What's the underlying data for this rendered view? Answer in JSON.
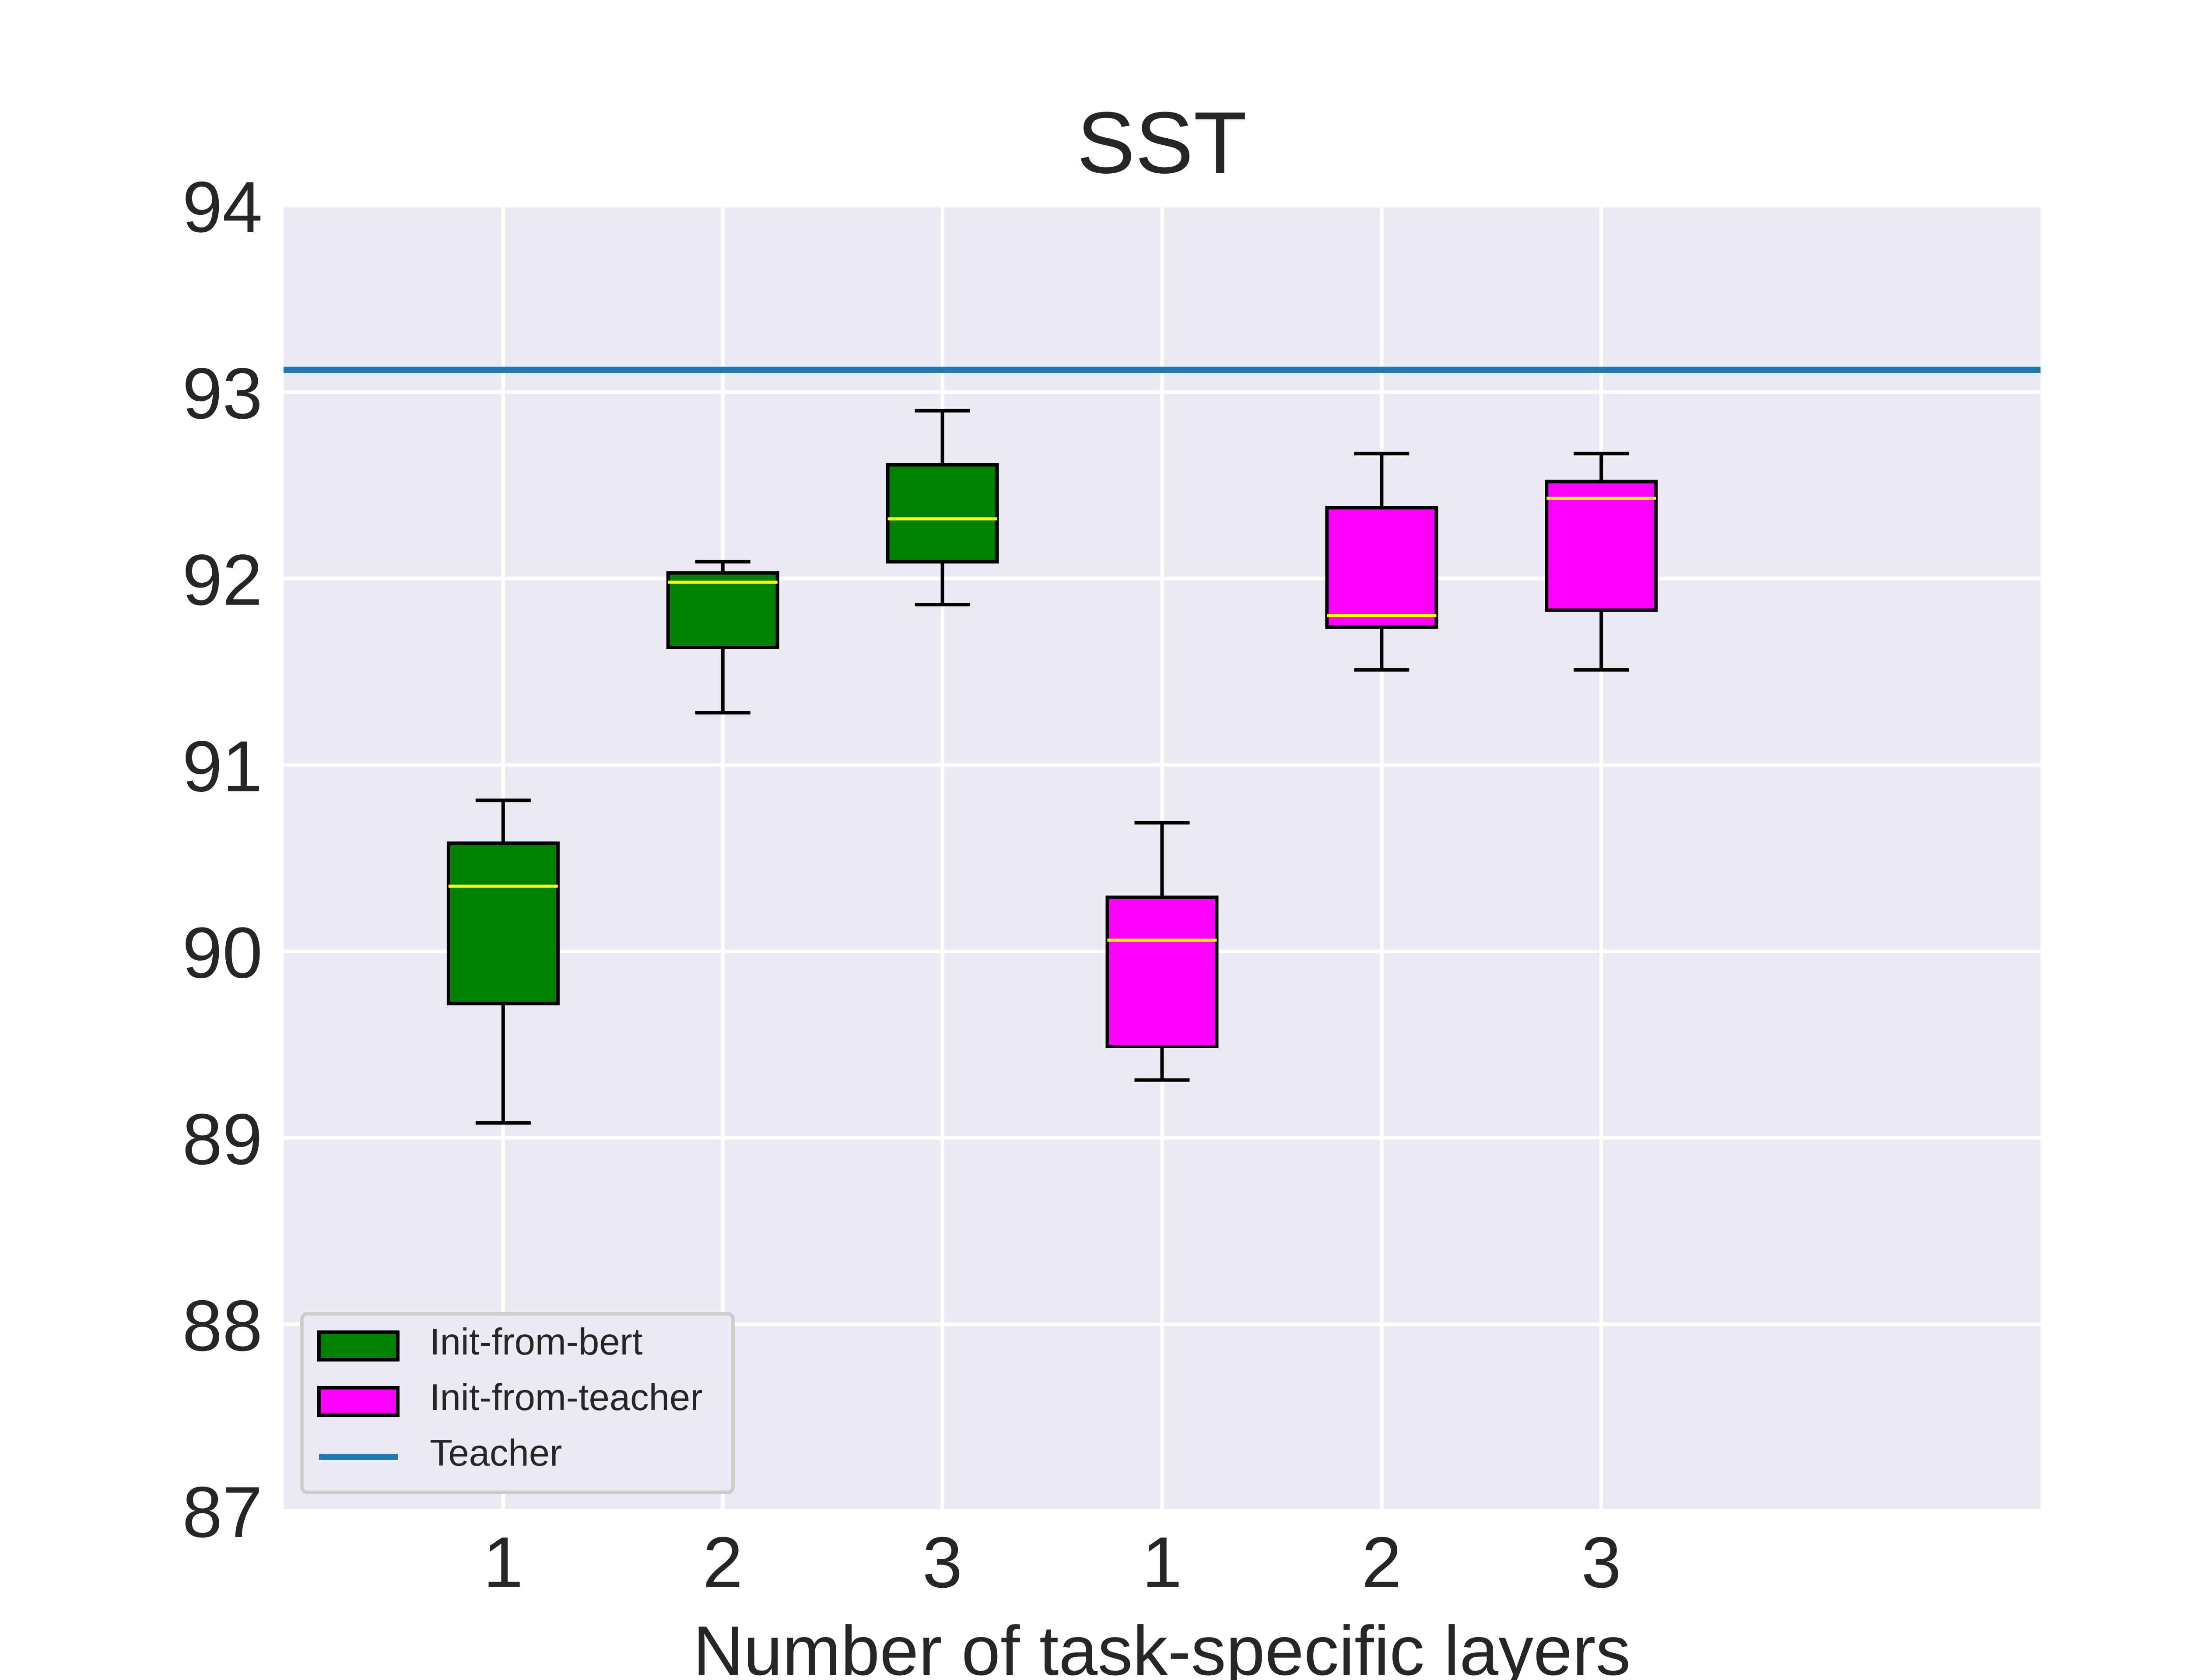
{
  "chart_data": {
    "type": "box",
    "title": "SST",
    "xlabel": "Number of task-specific layers",
    "ylabel": "",
    "ylim": [
      87,
      94
    ],
    "yticks": [
      87,
      88,
      89,
      90,
      91,
      92,
      93,
      94
    ],
    "grid": true,
    "legend_position": "lower-left",
    "categories": [
      "1",
      "2",
      "3",
      "1",
      "2",
      "3"
    ],
    "series": [
      {
        "name": "Init-from-bert",
        "color": "#008000",
        "median_color": "#ffff00",
        "boxes": [
          {
            "label": "1",
            "whisker_low": 89.08,
            "q1": 89.72,
            "median": 90.35,
            "q3": 90.58,
            "whisker_high": 90.81
          },
          {
            "label": "2",
            "whisker_low": 91.28,
            "q1": 91.63,
            "median": 91.98,
            "q3": 92.03,
            "whisker_high": 92.09
          },
          {
            "label": "3",
            "whisker_low": 91.86,
            "q1": 92.09,
            "median": 92.32,
            "q3": 92.61,
            "whisker_high": 92.9
          }
        ]
      },
      {
        "name": "Init-from-teacher",
        "color": "#ff00ff",
        "median_color": "#ffff00",
        "boxes": [
          {
            "label": "1",
            "whisker_low": 89.31,
            "q1": 89.49,
            "median": 90.06,
            "q3": 90.29,
            "whisker_high": 90.69
          },
          {
            "label": "2",
            "whisker_low": 91.51,
            "q1": 91.74,
            "median": 91.8,
            "q3": 92.38,
            "whisker_high": 92.67
          },
          {
            "label": "3",
            "whisker_low": 91.51,
            "q1": 91.83,
            "median": 92.43,
            "q3": 92.52,
            "whisker_high": 92.67
          }
        ]
      }
    ],
    "reference_lines": [
      {
        "name": "Teacher",
        "y": 93.12,
        "color": "#1f77b4"
      }
    ],
    "legend": [
      "Init-from-bert",
      "Init-from-teacher",
      "Teacher"
    ]
  }
}
